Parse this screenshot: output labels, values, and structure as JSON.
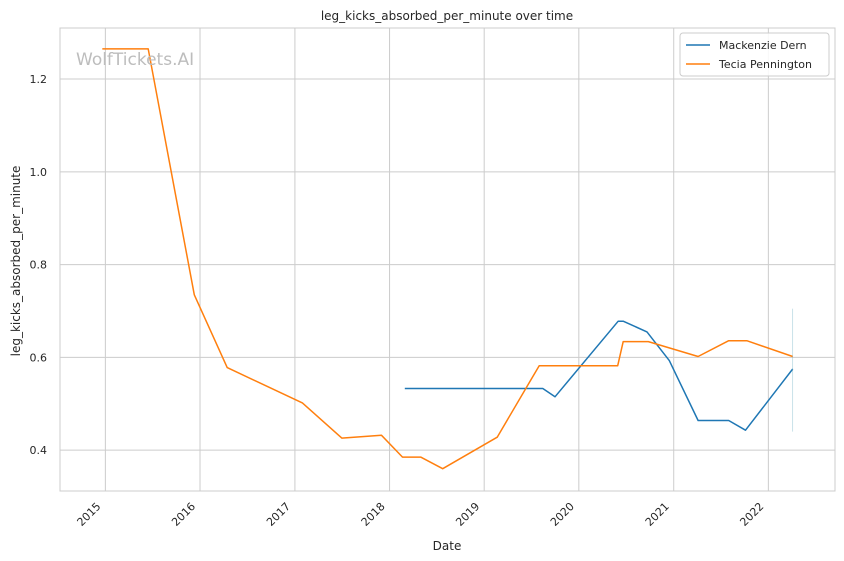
{
  "watermark": "WolfTickets.AI",
  "chart_data": {
    "type": "line",
    "title": "leg_kicks_absorbed_per_minute over time",
    "xlabel": "Date",
    "ylabel": "leg_kicks_absorbed_per_minute",
    "xlim": [
      "2014-07-10",
      "2022-09-15"
    ],
    "ylim": [
      0.312,
      1.31
    ],
    "x_ticks": [
      "2015",
      "2016",
      "2017",
      "2018",
      "2019",
      "2020",
      "2021",
      "2022"
    ],
    "y_ticks": [
      0.4,
      0.6,
      0.8,
      1.0,
      1.2
    ],
    "grid": true,
    "legend_position": "top-right",
    "series": [
      {
        "name": "Mackenzie Dern",
        "color": "#1f77b4",
        "points": [
          {
            "x": "2018-03-01",
            "y": 0.533
          },
          {
            "x": "2019-08-15",
            "y": 0.533
          },
          {
            "x": "2019-10-01",
            "y": 0.515
          },
          {
            "x": "2020-06-01",
            "y": 0.678
          },
          {
            "x": "2020-06-20",
            "y": 0.678
          },
          {
            "x": "2020-09-20",
            "y": 0.655
          },
          {
            "x": "2020-12-15",
            "y": 0.593
          },
          {
            "x": "2021-04-05",
            "y": 0.464
          },
          {
            "x": "2021-08-01",
            "y": 0.464
          },
          {
            "x": "2021-10-05",
            "y": 0.443
          },
          {
            "x": "2022-04-05",
            "y": 0.575
          }
        ]
      },
      {
        "name": "Tecia Pennington",
        "color": "#ff7f0e",
        "points": [
          {
            "x": "2014-12-20",
            "y": 1.265
          },
          {
            "x": "2015-06-15",
            "y": 1.265
          },
          {
            "x": "2015-12-10",
            "y": 0.735
          },
          {
            "x": "2016-04-15",
            "y": 0.578
          },
          {
            "x": "2017-01-30",
            "y": 0.502
          },
          {
            "x": "2017-07-01",
            "y": 0.426
          },
          {
            "x": "2017-12-01",
            "y": 0.432
          },
          {
            "x": "2018-02-20",
            "y": 0.385
          },
          {
            "x": "2018-05-01",
            "y": 0.385
          },
          {
            "x": "2018-07-25",
            "y": 0.36
          },
          {
            "x": "2019-02-20",
            "y": 0.428
          },
          {
            "x": "2019-08-01",
            "y": 0.582
          },
          {
            "x": "2020-05-30",
            "y": 0.582
          },
          {
            "x": "2020-06-20",
            "y": 0.634
          },
          {
            "x": "2020-09-25",
            "y": 0.634
          },
          {
            "x": "2021-04-05",
            "y": 0.602
          },
          {
            "x": "2021-08-01",
            "y": 0.636
          },
          {
            "x": "2021-10-10",
            "y": 0.636
          },
          {
            "x": "2022-04-05",
            "y": 0.602
          }
        ]
      }
    ]
  }
}
